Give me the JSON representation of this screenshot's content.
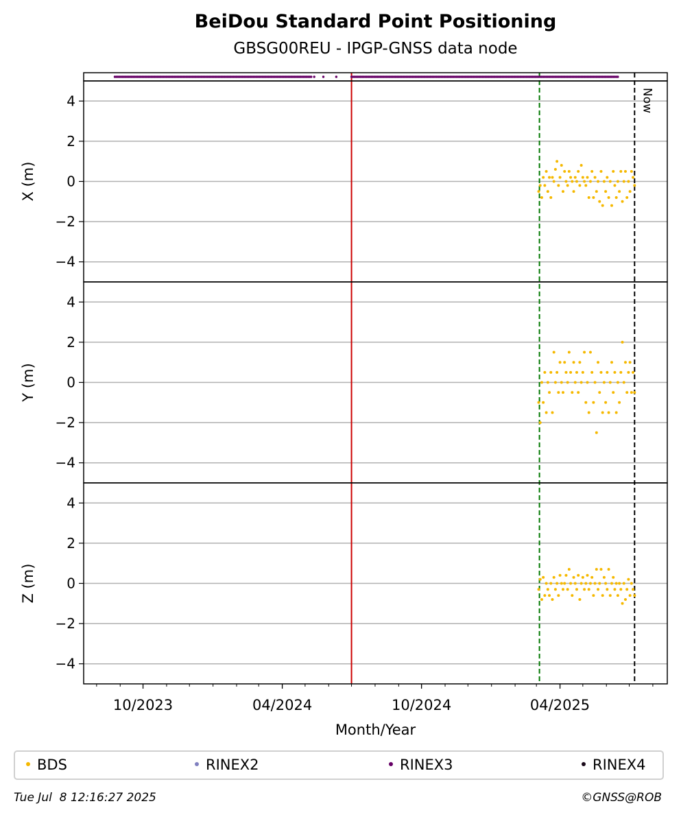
{
  "chart_data": {
    "type": "scatter",
    "title": "BeiDou Standard Point Positioning",
    "subtitle": "GBSG00REU - IPGP-GNSS data node",
    "xlabel": "Month/Year",
    "x_range": [
      "2023-07-15",
      "2025-08-20"
    ],
    "x_ticks": [
      "10/2023",
      "04/2024",
      "10/2024",
      "04/2025"
    ],
    "now_label": "Now",
    "now_date": "2025-07-08",
    "red_line_date": "2024-07-01",
    "green_line_date": "2025-03-05",
    "grid": true,
    "legend_position": "bottom",
    "legend": [
      {
        "label": "BDS",
        "color": "#f5b800"
      },
      {
        "label": "RINEX2",
        "color": "#8080c0"
      },
      {
        "label": "RINEX3",
        "color": "#660066"
      },
      {
        "label": "RINEX4",
        "color": "#1a0a1a"
      }
    ],
    "availability": {
      "series": "RINEX3",
      "ranges": [
        [
          "2023-08-25",
          "2024-05-10"
        ],
        [
          "2024-07-01",
          "2025-06-17"
        ]
      ],
      "isolated_points": [
        "2024-05-13",
        "2024-05-25",
        "2024-06-11"
      ]
    },
    "panels": [
      {
        "ylabel": "X (m)",
        "ylim": [
          -5,
          5
        ],
        "yticks": [
          -4,
          -2,
          0,
          2,
          4
        ],
        "series": "BDS",
        "points": [
          [
            "2025-03-04",
            -0.5
          ],
          [
            "2025-03-06",
            -0.2
          ],
          [
            "2025-03-08",
            -0.8
          ],
          [
            "2025-03-10",
            0.2
          ],
          [
            "2025-03-12",
            -0.2
          ],
          [
            "2025-03-14",
            0.5
          ],
          [
            "2025-03-16",
            -0.5
          ],
          [
            "2025-03-18",
            0.2
          ],
          [
            "2025-03-20",
            -0.8
          ],
          [
            "2025-03-22",
            0.2
          ],
          [
            "2025-03-24",
            0.0
          ],
          [
            "2025-03-26",
            0.6
          ],
          [
            "2025-03-28",
            1.0
          ],
          [
            "2025-03-30",
            -0.2
          ],
          [
            "2025-04-01",
            0.2
          ],
          [
            "2025-04-03",
            0.8
          ],
          [
            "2025-04-05",
            -0.5
          ],
          [
            "2025-04-07",
            0.5
          ],
          [
            "2025-04-09",
            0.0
          ],
          [
            "2025-04-11",
            -0.2
          ],
          [
            "2025-04-13",
            0.5
          ],
          [
            "2025-04-15",
            0.2
          ],
          [
            "2025-04-17",
            0.0
          ],
          [
            "2025-04-19",
            -0.5
          ],
          [
            "2025-04-21",
            0.2
          ],
          [
            "2025-04-23",
            0.0
          ],
          [
            "2025-04-25",
            0.5
          ],
          [
            "2025-04-27",
            -0.2
          ],
          [
            "2025-04-29",
            0.8
          ],
          [
            "2025-05-01",
            0.2
          ],
          [
            "2025-05-03",
            0.0
          ],
          [
            "2025-05-05",
            -0.2
          ],
          [
            "2025-05-07",
            0.2
          ],
          [
            "2025-05-09",
            -0.8
          ],
          [
            "2025-05-11",
            0.0
          ],
          [
            "2025-05-13",
            0.5
          ],
          [
            "2025-05-15",
            -0.8
          ],
          [
            "2025-05-17",
            0.2
          ],
          [
            "2025-05-19",
            -0.5
          ],
          [
            "2025-05-21",
            0.0
          ],
          [
            "2025-05-23",
            -1.0
          ],
          [
            "2025-05-25",
            0.5
          ],
          [
            "2025-05-27",
            -1.2
          ],
          [
            "2025-05-29",
            0.0
          ],
          [
            "2025-05-31",
            -0.5
          ],
          [
            "2025-06-02",
            0.2
          ],
          [
            "2025-06-04",
            -0.8
          ],
          [
            "2025-06-06",
            0.0
          ],
          [
            "2025-06-08",
            -1.2
          ],
          [
            "2025-06-10",
            0.5
          ],
          [
            "2025-06-12",
            -0.2
          ],
          [
            "2025-06-14",
            -0.8
          ],
          [
            "2025-06-16",
            0.0
          ],
          [
            "2025-06-18",
            -0.5
          ],
          [
            "2025-06-20",
            0.5
          ],
          [
            "2025-06-22",
            -1.0
          ],
          [
            "2025-06-24",
            0.0
          ],
          [
            "2025-06-26",
            0.5
          ],
          [
            "2025-06-28",
            -0.8
          ],
          [
            "2025-06-30",
            0.0
          ],
          [
            "2025-07-02",
            -0.5
          ],
          [
            "2025-07-04",
            0.5
          ],
          [
            "2025-07-06",
            0.2
          ],
          [
            "2025-07-08",
            -0.2
          ]
        ]
      },
      {
        "ylabel": "Y (m)",
        "ylim": [
          -5,
          5
        ],
        "yticks": [
          -4,
          -2,
          0,
          2,
          4
        ],
        "series": "BDS",
        "points": [
          [
            "2025-03-04",
            -1.0
          ],
          [
            "2025-03-06",
            -2.0
          ],
          [
            "2025-03-08",
            0.0
          ],
          [
            "2025-03-10",
            -1.0
          ],
          [
            "2025-03-12",
            0.5
          ],
          [
            "2025-03-14",
            -1.5
          ],
          [
            "2025-03-16",
            0.0
          ],
          [
            "2025-03-18",
            -0.5
          ],
          [
            "2025-03-20",
            0.5
          ],
          [
            "2025-03-22",
            -1.5
          ],
          [
            "2025-03-24",
            1.5
          ],
          [
            "2025-03-26",
            0.0
          ],
          [
            "2025-03-28",
            0.5
          ],
          [
            "2025-03-30",
            -0.5
          ],
          [
            "2025-04-01",
            1.0
          ],
          [
            "2025-04-03",
            0.0
          ],
          [
            "2025-04-05",
            -0.5
          ],
          [
            "2025-04-07",
            1.0
          ],
          [
            "2025-04-09",
            0.5
          ],
          [
            "2025-04-11",
            0.0
          ],
          [
            "2025-04-13",
            1.5
          ],
          [
            "2025-04-15",
            0.5
          ],
          [
            "2025-04-17",
            -0.5
          ],
          [
            "2025-04-19",
            1.0
          ],
          [
            "2025-04-21",
            0.0
          ],
          [
            "2025-04-23",
            0.5
          ],
          [
            "2025-04-25",
            -0.5
          ],
          [
            "2025-04-27",
            1.0
          ],
          [
            "2025-04-29",
            0.0
          ],
          [
            "2025-05-01",
            0.5
          ],
          [
            "2025-05-03",
            1.5
          ],
          [
            "2025-05-05",
            -1.0
          ],
          [
            "2025-05-07",
            0.0
          ],
          [
            "2025-05-09",
            -1.5
          ],
          [
            "2025-05-11",
            1.5
          ],
          [
            "2025-05-13",
            0.5
          ],
          [
            "2025-05-15",
            -1.0
          ],
          [
            "2025-05-17",
            0.0
          ],
          [
            "2025-05-19",
            -2.5
          ],
          [
            "2025-05-21",
            1.0
          ],
          [
            "2025-05-23",
            -0.5
          ],
          [
            "2025-05-25",
            0.5
          ],
          [
            "2025-05-27",
            -1.5
          ],
          [
            "2025-05-29",
            0.0
          ],
          [
            "2025-05-31",
            -1.0
          ],
          [
            "2025-06-02",
            0.5
          ],
          [
            "2025-06-04",
            -1.5
          ],
          [
            "2025-06-06",
            0.0
          ],
          [
            "2025-06-08",
            1.0
          ],
          [
            "2025-06-10",
            -0.5
          ],
          [
            "2025-06-12",
            0.5
          ],
          [
            "2025-06-14",
            -1.5
          ],
          [
            "2025-06-16",
            0.0
          ],
          [
            "2025-06-18",
            -1.0
          ],
          [
            "2025-06-20",
            0.5
          ],
          [
            "2025-06-22",
            2.0
          ],
          [
            "2025-06-24",
            0.0
          ],
          [
            "2025-06-26",
            1.0
          ],
          [
            "2025-06-28",
            -0.5
          ],
          [
            "2025-06-30",
            0.5
          ],
          [
            "2025-07-02",
            1.0
          ],
          [
            "2025-07-04",
            -0.5
          ],
          [
            "2025-07-06",
            0.5
          ],
          [
            "2025-07-08",
            -0.5
          ]
        ]
      },
      {
        "ylabel": "Z (m)",
        "ylim": [
          -5,
          5
        ],
        "yticks": [
          -4,
          -2,
          0,
          2,
          4
        ],
        "series": "BDS",
        "points": [
          [
            "2025-03-04",
            -0.3
          ],
          [
            "2025-03-06",
            0.2
          ],
          [
            "2025-03-08",
            -0.8
          ],
          [
            "2025-03-10",
            0.3
          ],
          [
            "2025-03-12",
            -0.6
          ],
          [
            "2025-03-14",
            0.0
          ],
          [
            "2025-03-16",
            -0.3
          ],
          [
            "2025-03-18",
            -0.6
          ],
          [
            "2025-03-20",
            0.0
          ],
          [
            "2025-03-22",
            -0.8
          ],
          [
            "2025-03-24",
            0.3
          ],
          [
            "2025-03-26",
            -0.3
          ],
          [
            "2025-03-28",
            0.0
          ],
          [
            "2025-03-30",
            -0.6
          ],
          [
            "2025-04-01",
            0.4
          ],
          [
            "2025-04-03",
            0.0
          ],
          [
            "2025-04-05",
            -0.3
          ],
          [
            "2025-04-07",
            0.0
          ],
          [
            "2025-04-09",
            0.4
          ],
          [
            "2025-04-11",
            -0.3
          ],
          [
            "2025-04-13",
            0.7
          ],
          [
            "2025-04-15",
            0.0
          ],
          [
            "2025-04-17",
            -0.6
          ],
          [
            "2025-04-19",
            0.3
          ],
          [
            "2025-04-21",
            0.0
          ],
          [
            "2025-04-23",
            -0.3
          ],
          [
            "2025-04-25",
            0.4
          ],
          [
            "2025-04-27",
            -0.8
          ],
          [
            "2025-04-29",
            0.0
          ],
          [
            "2025-05-01",
            0.3
          ],
          [
            "2025-05-03",
            -0.3
          ],
          [
            "2025-05-05",
            0.0
          ],
          [
            "2025-05-07",
            0.4
          ],
          [
            "2025-05-09",
            -0.3
          ],
          [
            "2025-05-11",
            0.0
          ],
          [
            "2025-05-13",
            0.3
          ],
          [
            "2025-05-15",
            -0.6
          ],
          [
            "2025-05-17",
            0.0
          ],
          [
            "2025-05-19",
            0.7
          ],
          [
            "2025-05-21",
            -0.3
          ],
          [
            "2025-05-23",
            0.0
          ],
          [
            "2025-05-25",
            0.7
          ],
          [
            "2025-05-27",
            -0.6
          ],
          [
            "2025-05-29",
            0.3
          ],
          [
            "2025-05-31",
            0.0
          ],
          [
            "2025-06-02",
            -0.3
          ],
          [
            "2025-06-04",
            0.7
          ],
          [
            "2025-06-06",
            -0.6
          ],
          [
            "2025-06-08",
            0.0
          ],
          [
            "2025-06-10",
            0.3
          ],
          [
            "2025-06-12",
            -0.3
          ],
          [
            "2025-06-14",
            0.0
          ],
          [
            "2025-06-16",
            -0.6
          ],
          [
            "2025-06-18",
            0.0
          ],
          [
            "2025-06-20",
            -0.3
          ],
          [
            "2025-06-22",
            -1.0
          ],
          [
            "2025-06-24",
            0.0
          ],
          [
            "2025-06-26",
            -0.8
          ],
          [
            "2025-06-28",
            -0.3
          ],
          [
            "2025-06-30",
            0.2
          ],
          [
            "2025-07-02",
            -0.6
          ],
          [
            "2025-07-04",
            0.0
          ],
          [
            "2025-07-06",
            -0.3
          ],
          [
            "2025-07-08",
            -0.6
          ]
        ]
      }
    ]
  },
  "footer": {
    "timestamp": "Tue Jul  8 12:16:27 2025",
    "copyright": "©GNSS@ROB"
  }
}
